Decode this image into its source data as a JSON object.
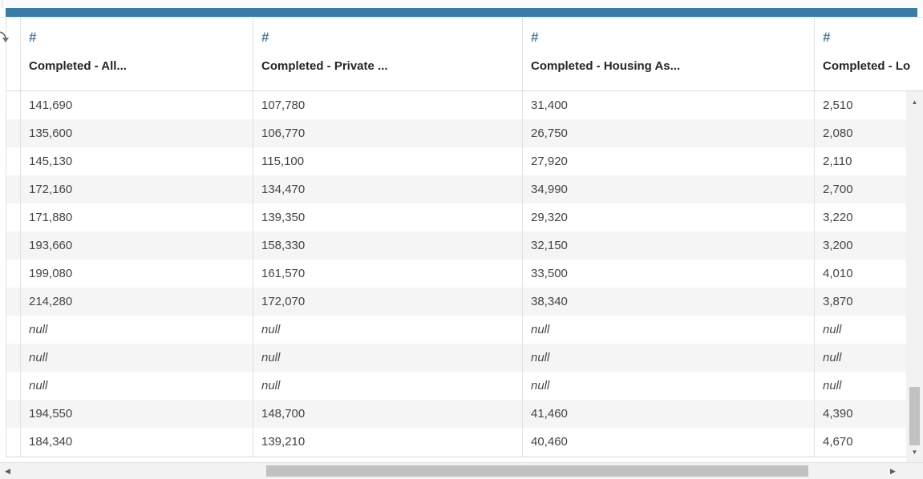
{
  "colors": {
    "accent_bar": "#3a7ca5",
    "type_icon": "#467a9b",
    "row_stripe": "#f5f5f6",
    "scrollbar_thumb": "#c1c1c1",
    "scrollbar_track": "#f2f2f2"
  },
  "icons": {
    "number_type": "#",
    "sort": "curved-down-arrow",
    "scroll_up": "▲",
    "scroll_down": "▼",
    "scroll_left": "◀",
    "scroll_right": "▶"
  },
  "table": {
    "null_display": "null",
    "columns": [
      {
        "type_icon": "#",
        "label": "Completed - All..."
      },
      {
        "type_icon": "#",
        "label": "Completed - Private ..."
      },
      {
        "type_icon": "#",
        "label": "Completed - Housing As..."
      },
      {
        "type_icon": "#",
        "label": "Completed - Lo"
      }
    ],
    "rows": [
      [
        "141,690",
        "107,780",
        "31,400",
        "2,510"
      ],
      [
        "135,600",
        "106,770",
        "26,750",
        "2,080"
      ],
      [
        "145,130",
        "115,100",
        "27,920",
        "2,110"
      ],
      [
        "172,160",
        "134,470",
        "34,990",
        "2,700"
      ],
      [
        "171,880",
        "139,350",
        "29,320",
        "3,220"
      ],
      [
        "193,660",
        "158,330",
        "32,150",
        "3,200"
      ],
      [
        "199,080",
        "161,570",
        "33,500",
        "4,010"
      ],
      [
        "214,280",
        "172,070",
        "38,340",
        "3,870"
      ],
      [
        "null",
        "null",
        "null",
        "null"
      ],
      [
        "null",
        "null",
        "null",
        "null"
      ],
      [
        "null",
        "null",
        "null",
        "null"
      ],
      [
        "194,550",
        "148,700",
        "41,460",
        "4,390"
      ],
      [
        "184,340",
        "139,210",
        "40,460",
        "4,670"
      ]
    ]
  }
}
